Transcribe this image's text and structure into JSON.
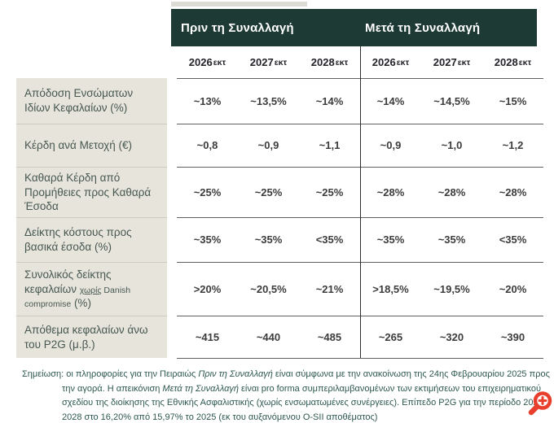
{
  "header": {
    "before_label": "Πριν τη Συναλλαγή",
    "after_label": "Μετά τη Συναλλαγή",
    "years": [
      "2026",
      "2027",
      "2028",
      "2026",
      "2027",
      "2028"
    ],
    "year_suffix": "εκτ"
  },
  "rows": [
    {
      "label_segments": [
        {
          "t": "Απόδοση Ενσώματων",
          "br": true
        },
        {
          "t": "Ιδίων Κεφαλαίων (%)"
        }
      ],
      "values": [
        "~13%",
        "~13,5%",
        "~14%",
        "~14%",
        "~14,5%",
        "~15%"
      ]
    },
    {
      "label_segments": [
        {
          "t": "Κέρδη ανά Μετοχή (€)"
        }
      ],
      "values": [
        "~0,8",
        "~0,9",
        "~1,1",
        "~0,9",
        "~1,0",
        "~1,2"
      ]
    },
    {
      "label_segments": [
        {
          "t": "Καθαρά Κέρδη από",
          "br": true
        },
        {
          "t": "Προμήθειες προς Καθαρά",
          "br": true
        },
        {
          "t": "Έσοδα"
        }
      ],
      "values": [
        "~25%",
        "~25%",
        "~25%",
        "~28%",
        "~28%",
        "~28%"
      ]
    },
    {
      "label_segments": [
        {
          "t": "Δείκτης κόστους προς",
          "br": true
        },
        {
          "t": "βασικά έσοδα (%)"
        }
      ],
      "values": [
        "~35%",
        "~35%",
        "<35%",
        "~35%",
        "~35%",
        "<35%"
      ]
    },
    {
      "label_segments": [
        {
          "t": "Συνολικός δείκτης",
          "br": true
        },
        {
          "t": "κεφαλαίων "
        },
        {
          "t": "χωρίς",
          "cls": "sm ul"
        },
        {
          "t": " Danish",
          "cls": "sm",
          "br": true
        },
        {
          "t": "compromise",
          "cls": "sm"
        },
        {
          "t": " (%)"
        }
      ],
      "values": [
        ">20%",
        "~20,5%",
        "~21%",
        ">18,5%",
        "~19,5%",
        "~20%"
      ]
    },
    {
      "label_segments": [
        {
          "t": "Απόθεμα κεφαλαίων άνω",
          "br": true
        },
        {
          "t": "του P2G (μ.β.)"
        }
      ],
      "values": [
        "~415",
        "~440",
        "~485",
        "~265",
        "~320",
        "~390"
      ]
    }
  ],
  "footnote": {
    "lines": [
      {
        "indent": false,
        "segments": [
          {
            "t": "Σημείωση: οι πληροφορίες για την Πειραιώς "
          },
          {
            "t": "Πριν τη Συναλλαγή",
            "cls": "it"
          },
          {
            "t": " είναι σύμφωνα με την ανακοίνωση της 24ης Φεβρουαρίου 2025 προς"
          }
        ]
      },
      {
        "indent": true,
        "segments": [
          {
            "t": "την αγορά. Η απεικόνιση "
          },
          {
            "t": "Μετά τη Συναλλαγή",
            "cls": "it"
          },
          {
            "t": " είναι pro forma συμπεριλαμβανομένων των εκτιμήσεων του επιχειρηματικού"
          }
        ]
      },
      {
        "indent": true,
        "segments": [
          {
            "t": "σχεδίου της διοίκησης της Εθνικής Ασφαλιστικής (χωρίς ενσωματωμένες συνέργειες). Επίπεδο P2G για την περίοδο 2026-"
          }
        ]
      },
      {
        "indent": true,
        "segments": [
          {
            "t": "2028 στο 16,20% από 15,97% το 2025 (εκ του αυξανόμενου O-SII αποθέματος)"
          }
        ]
      }
    ]
  },
  "icons": {
    "zoom": "magnifier-plus"
  },
  "colors": {
    "band": "#1d3a34",
    "band_text": "#ffffff",
    "label_bg": "#e6e4db",
    "label_text": "#475851",
    "value_text": "#3c3c3c",
    "year_text": "#23232a",
    "grid_line": "#5f5f5f",
    "divider": "#2d2d2d",
    "label_separator": "#cdcabf",
    "footnote_text": "#2d5850",
    "zoom_red": "#e8402d",
    "top_strip": "#dcdbd5"
  },
  "chart_data": {
    "type": "table",
    "title": "",
    "column_groups": [
      "Πριν τη Συναλλαγή",
      "Μετά τη Συναλλαγή"
    ],
    "columns": [
      "2026εκτ",
      "2027εκτ",
      "2028εκτ",
      "2026εκτ",
      "2027εκτ",
      "2028εκτ"
    ],
    "rows": [
      {
        "metric": "Απόδοση Ενσώματων Ιδίων Κεφαλαίων (%)",
        "values": [
          "~13%",
          "~13,5%",
          "~14%",
          "~14%",
          "~14,5%",
          "~15%"
        ]
      },
      {
        "metric": "Κέρδη ανά Μετοχή (€)",
        "values": [
          "~0,8",
          "~0,9",
          "~1,1",
          "~0,9",
          "~1,0",
          "~1,2"
        ]
      },
      {
        "metric": "Καθαρά Κέρδη από Προμήθειες προς Καθαρά Έσοδα",
        "values": [
          "~25%",
          "~25%",
          "~25%",
          "~28%",
          "~28%",
          "~28%"
        ]
      },
      {
        "metric": "Δείκτης κόστους προς βασικά έσοδα (%)",
        "values": [
          "~35%",
          "~35%",
          "<35%",
          "~35%",
          "~35%",
          "<35%"
        ]
      },
      {
        "metric": "Συνολικός δείκτης κεφαλαίων χωρίς Danish compromise (%)",
        "values": [
          ">20%",
          "~20,5%",
          "~21%",
          ">18,5%",
          "~19,5%",
          "~20%"
        ]
      },
      {
        "metric": "Απόθεμα κεφαλαίων άνω του P2G (μ.β.)",
        "values": [
          "~415",
          "~440",
          "~485",
          "~265",
          "~320",
          "~390"
        ]
      }
    ],
    "footnote": "Σημείωση: οι πληροφορίες για την Πειραιώς Πριν τη Συναλλαγή είναι σύμφωνα με την ανακοίνωση της 24ης Φεβρουαρίου 2025 προς την αγορά. Η απεικόνιση Μετά τη Συναλλαγή είναι pro forma συμπεριλαμβανομένων των εκτιμήσεων του επιχειρηματικού σχεδίου της διοίκησης της Εθνικής Ασφαλιστικής (χωρίς ενσωματωμένες συνέργειες). Επίπεδο P2G για την περίοδο 2026-2028 στο 16,20% από 15,97% το 2025 (εκ του αυξανόμενου O-SII αποθέματος)"
  }
}
